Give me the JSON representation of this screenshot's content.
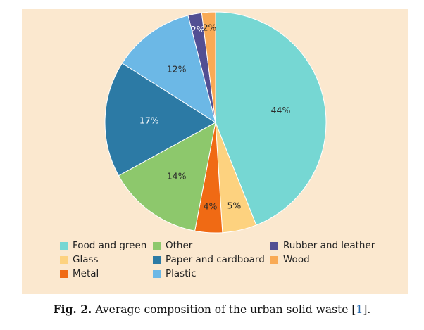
{
  "chart_data": {
    "type": "pie",
    "title": "",
    "slices": [
      {
        "name": "Food and green",
        "value": 44,
        "label": "44%",
        "color": "#76d7d3"
      },
      {
        "name": "Glass",
        "value": 5,
        "label": "5%",
        "color": "#fdd27f"
      },
      {
        "name": "Metal",
        "value": 4,
        "label": "4%",
        "color": "#f06a14"
      },
      {
        "name": "Other",
        "value": 14,
        "label": "14%",
        "color": "#8dc86c"
      },
      {
        "name": "Paper and cardboard",
        "value": 17,
        "label": "17%",
        "color": "#2c7aa5"
      },
      {
        "name": "Plastic",
        "value": 12,
        "label": "12%",
        "color": "#6cb8e6"
      },
      {
        "name": "Rubber and leather",
        "value": 2,
        "label": "2%",
        "color": "#524f93"
      },
      {
        "name": "Wood",
        "value": 2,
        "label": "2%",
        "color": "#f9aa55"
      }
    ],
    "legend": {
      "placement": "bottom",
      "entries": [
        "Food and green",
        "Other",
        "Rubber and leather",
        "Glass",
        "Paper and cardboard",
        "Wood",
        "Metal",
        "Plastic"
      ]
    }
  },
  "caption": {
    "label": "Fig. 2.",
    "text": " Average composition of the urban solid waste [",
    "ref": "1",
    "end": "]."
  }
}
